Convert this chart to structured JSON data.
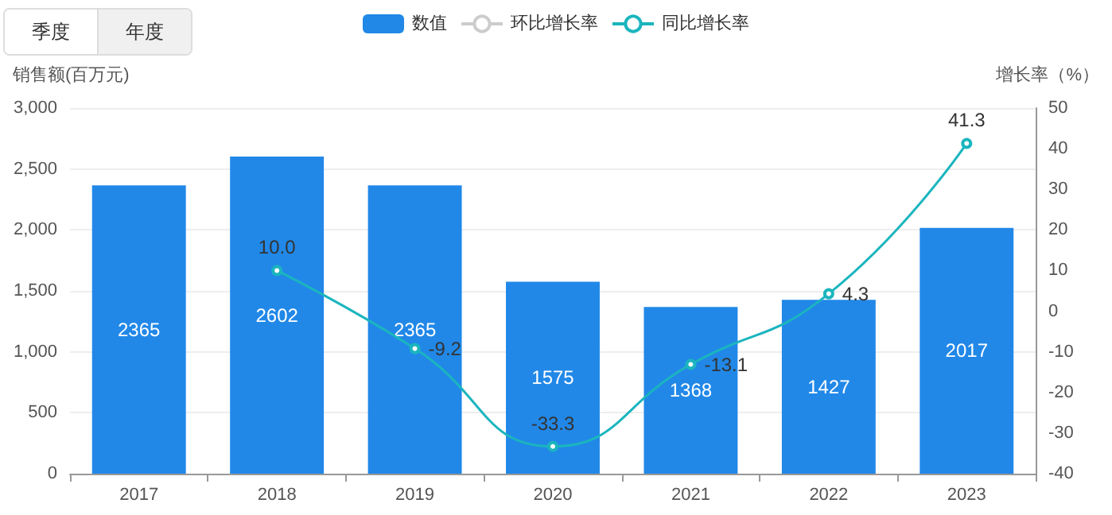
{
  "chart_data": {
    "type": "bar",
    "ylabel": "销售额(百万元)",
    "y2label": "增长率（%）",
    "categories": [
      "2017",
      "2018",
      "2019",
      "2020",
      "2021",
      "2022",
      "2023"
    ],
    "series": [
      {
        "name": "数值",
        "type": "bar",
        "color": "#2188e8",
        "values": [
          2365,
          2602,
          2365,
          1575,
          1368,
          1427,
          2017
        ]
      },
      {
        "name": "环比增长率",
        "type": "line",
        "axis": "y2",
        "color": "#cccccc",
        "values": [
          null,
          null,
          null,
          null,
          null,
          null,
          null
        ]
      },
      {
        "name": "同比增长率",
        "type": "line",
        "axis": "y2",
        "color": "#1bb5be",
        "values": [
          null,
          10.0,
          -9.2,
          -33.3,
          -13.1,
          4.3,
          41.3
        ],
        "value_labels": [
          null,
          "10.0",
          "-9.2",
          "-33.3",
          "-13.1",
          "4.3",
          "41.3"
        ]
      }
    ],
    "data_labels": true,
    "marker": "circle",
    "grid": "y",
    "legend": "top",
    "ylim": [
      0,
      3000
    ],
    "yticks": [
      0,
      500,
      {
        "value": 1000,
        "label": "1,000"
      },
      {
        "value": 1500,
        "label": "1,500"
      },
      {
        "value": 2000,
        "label": "2,000"
      },
      {
        "value": 2500,
        "label": "2,500"
      },
      {
        "value": 3000,
        "label": "3,000"
      }
    ],
    "y2lim": [
      -40,
      50
    ],
    "y2ticks": [
      -40,
      -30,
      -20,
      -10,
      0,
      10,
      20,
      30,
      40,
      50
    ],
    "annotations": [
      "季度",
      "年度"
    ]
  }
}
